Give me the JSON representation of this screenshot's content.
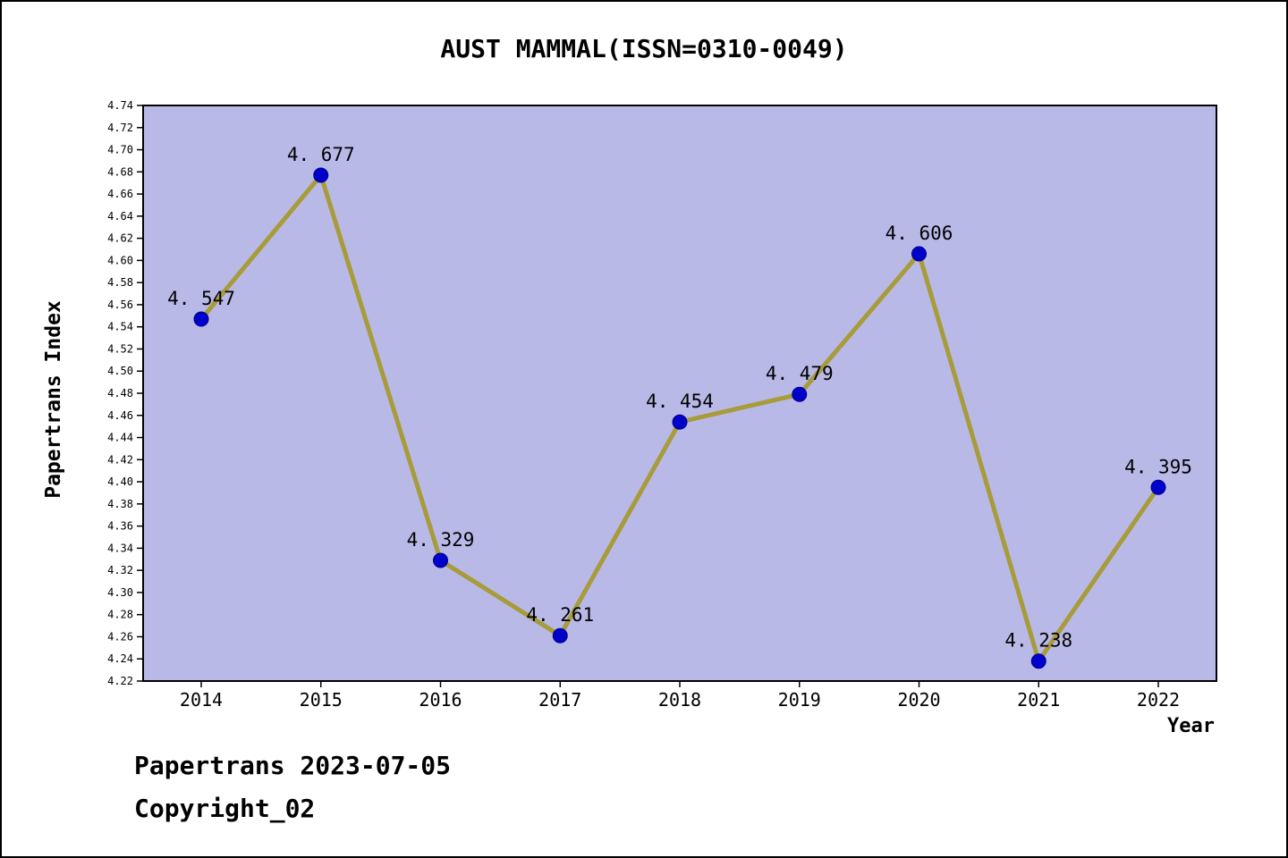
{
  "title": "AUST MAMMAL(ISSN=0310-0049)",
  "footer": {
    "line1": "Papertrans 2023-07-05",
    "line2": "Copyright_02"
  },
  "chart_data": {
    "type": "line",
    "title": "AUST MAMMAL(ISSN=0310-0049)",
    "xlabel": "Year",
    "ylabel": "Papertrans Index",
    "categories": [
      "2014",
      "2015",
      "2016",
      "2017",
      "2018",
      "2019",
      "2020",
      "2021",
      "2022"
    ],
    "values": [
      4.547,
      4.677,
      4.329,
      4.261,
      4.454,
      4.479,
      4.606,
      4.238,
      4.395
    ],
    "point_labels": [
      "4. 547",
      "4. 677",
      "4. 329",
      "4. 261",
      "4. 454",
      "4. 479",
      "4. 606",
      "4. 238",
      "4. 395"
    ],
    "ylim": [
      4.22,
      4.74
    ],
    "ytick_step": 0.02,
    "grid": false,
    "legend": "none",
    "colors": {
      "line": "#a79b3a",
      "marker_fill": "#0000cc",
      "marker_edge": "#000080",
      "plot_bg": "#b9b9e8",
      "axis": "#000000",
      "text": "#000000"
    }
  }
}
